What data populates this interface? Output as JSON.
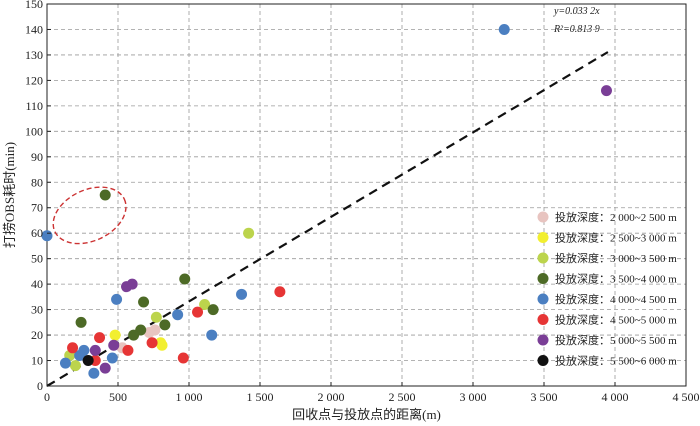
{
  "chart_data": {
    "type": "scatter",
    "title": "",
    "xlabel": "回收点与投放点的距离(m)",
    "ylabel": "打捞OBS耗时(min)",
    "xlim": [
      0,
      4500
    ],
    "ylim": [
      0,
      150
    ],
    "x_ticks": [
      0,
      500,
      1000,
      1500,
      2000,
      2500,
      3000,
      3500,
      4000,
      4500
    ],
    "x_tick_labels": [
      "0",
      "500",
      "1 000",
      "1 500",
      "2 000",
      "2 500",
      "3 000",
      "3 500",
      "4 000",
      "4 500"
    ],
    "y_ticks": [
      0,
      10,
      20,
      30,
      40,
      50,
      60,
      70,
      80,
      90,
      100,
      110,
      120,
      130,
      140,
      150
    ],
    "y_tick_labels": [
      "0",
      "10",
      "20",
      "30",
      "40",
      "50",
      "60",
      "70",
      "80",
      "90",
      "100",
      "110",
      "120",
      "130",
      "140",
      "150"
    ],
    "grid": true,
    "legend_position": "bottom-right",
    "fit": {
      "slope": 0.0332,
      "equation_label": "y=0.033 2x",
      "r2_label": "R²=0.813 9",
      "x_range": [
        0,
        3950
      ],
      "color": "#111111"
    },
    "annotation_ellipse": {
      "center": [
        300,
        67
      ],
      "rx_data": 270,
      "ry_data": 10,
      "color": "#cc3333"
    },
    "series": [
      {
        "name": "投放深度：2 000~2 500 m",
        "color": "#e8c4c0",
        "points": [
          [
            760,
            22
          ],
          [
            720,
            21
          ],
          [
            530,
            15
          ]
        ]
      },
      {
        "name": "投放深度：2 500~3 000 m",
        "color": "#f2ef30",
        "points": [
          [
            480,
            20
          ],
          [
            800,
            17
          ],
          [
            810,
            16
          ]
        ]
      },
      {
        "name": "投放深度：3 000~3 500 m",
        "color": "#bcd44c",
        "points": [
          [
            1420,
            60
          ],
          [
            1110,
            32
          ],
          [
            770,
            27
          ],
          [
            160,
            12
          ],
          [
            200,
            8
          ]
        ]
      },
      {
        "name": "投放深度：3 500~4 000 m",
        "color": "#4d6a26",
        "points": [
          [
            410,
            75
          ],
          [
            970,
            42
          ],
          [
            680,
            33
          ],
          [
            1170,
            30
          ],
          [
            240,
            25
          ],
          [
            830,
            24
          ],
          [
            660,
            22
          ],
          [
            610,
            20
          ]
        ]
      },
      {
        "name": "投放深度：4 000~4 500 m",
        "color": "#4b7fc1",
        "points": [
          [
            0,
            59
          ],
          [
            3220,
            140
          ],
          [
            490,
            34
          ],
          [
            1370,
            36
          ],
          [
            920,
            28
          ],
          [
            1160,
            20
          ],
          [
            130,
            9
          ],
          [
            260,
            14
          ],
          [
            460,
            11
          ],
          [
            330,
            5
          ],
          [
            230,
            12
          ]
        ]
      },
      {
        "name": "投放深度：4 500~5 000 m",
        "color": "#e63535",
        "points": [
          [
            1640,
            37
          ],
          [
            1060,
            29
          ],
          [
            740,
            17
          ],
          [
            570,
            14
          ],
          [
            960,
            11
          ],
          [
            370,
            19
          ],
          [
            180,
            15
          ],
          [
            340,
            10
          ]
        ]
      },
      {
        "name": "投放深度：5 000~5 500 m",
        "color": "#7a3e96",
        "points": [
          [
            3940,
            116
          ],
          [
            560,
            39
          ],
          [
            600,
            40
          ],
          [
            470,
            16
          ],
          [
            340,
            14
          ],
          [
            410,
            7
          ]
        ]
      },
      {
        "name": "投放深度：5 500~6 000 m",
        "color": "#111111",
        "points": [
          [
            290,
            10
          ]
        ]
      }
    ]
  }
}
